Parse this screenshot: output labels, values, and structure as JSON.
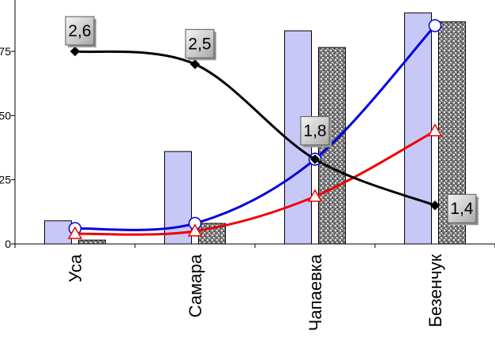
{
  "chart_data": {
    "type": "bar",
    "categories": [
      "Уса",
      "Самара",
      "Чапаевка",
      "Безенчук"
    ],
    "y_ticks": [
      "0",
      "25",
      "50",
      "75"
    ],
    "ylim": [
      0,
      95
    ],
    "grid": false,
    "bar_series": [
      {
        "values": [
          9,
          36,
          83,
          90
        ],
        "color": "#c8c8f8"
      },
      {
        "values": [
          1.5,
          8,
          76.5,
          86.5
        ],
        "color": "#8a8a8a",
        "pattern": "granite"
      }
    ],
    "line_series": [
      {
        "values": [
          6,
          8,
          33,
          85
        ],
        "color": "#0000dd",
        "marker": "circle"
      },
      {
        "values": [
          4,
          5,
          18.5,
          44
        ],
        "color": "#ee0000",
        "marker": "triangle"
      },
      {
        "values": [
          75,
          70,
          33,
          15
        ],
        "color": "#000000",
        "marker": "diamond",
        "data_labels": [
          "2,6",
          "2,5",
          "1,8",
          "1,4"
        ]
      }
    ]
  }
}
